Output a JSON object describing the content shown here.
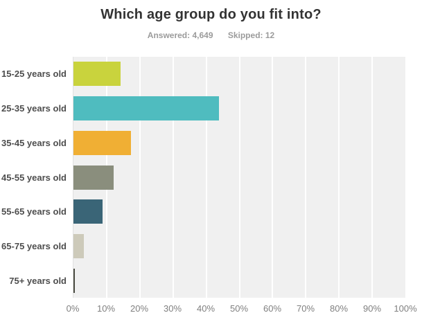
{
  "title": "Which age group do you fit into?",
  "stats": {
    "answered": "Answered: 4,649",
    "skipped": "Skipped: 12"
  },
  "chart_data": {
    "type": "bar",
    "orientation": "horizontal",
    "title": "Which age group do you fit into?",
    "categories": [
      "15-25 years old",
      "25-35 years old",
      "35-45 years old",
      "45-55 years old",
      "55-65 years old",
      "65-75 years old",
      "75+ years old"
    ],
    "values": [
      14.2,
      43.8,
      17.3,
      12.1,
      8.8,
      3.1,
      0.4
    ],
    "unit": "%",
    "bar_colors": [
      "#c9d33d",
      "#4fbcbf",
      "#f0af34",
      "#8a8e7d",
      "#3a6577",
      "#cdcaba",
      "#4a4b41"
    ],
    "x_ticks": [
      "0%",
      "10%",
      "20%",
      "30%",
      "40%",
      "50%",
      "60%",
      "70%",
      "80%",
      "90%",
      "100%"
    ],
    "xlim": [
      0,
      100
    ],
    "grid": true,
    "plot_background": "#f0f0f0",
    "gridline_color": "#ffffff",
    "legend": "none"
  }
}
